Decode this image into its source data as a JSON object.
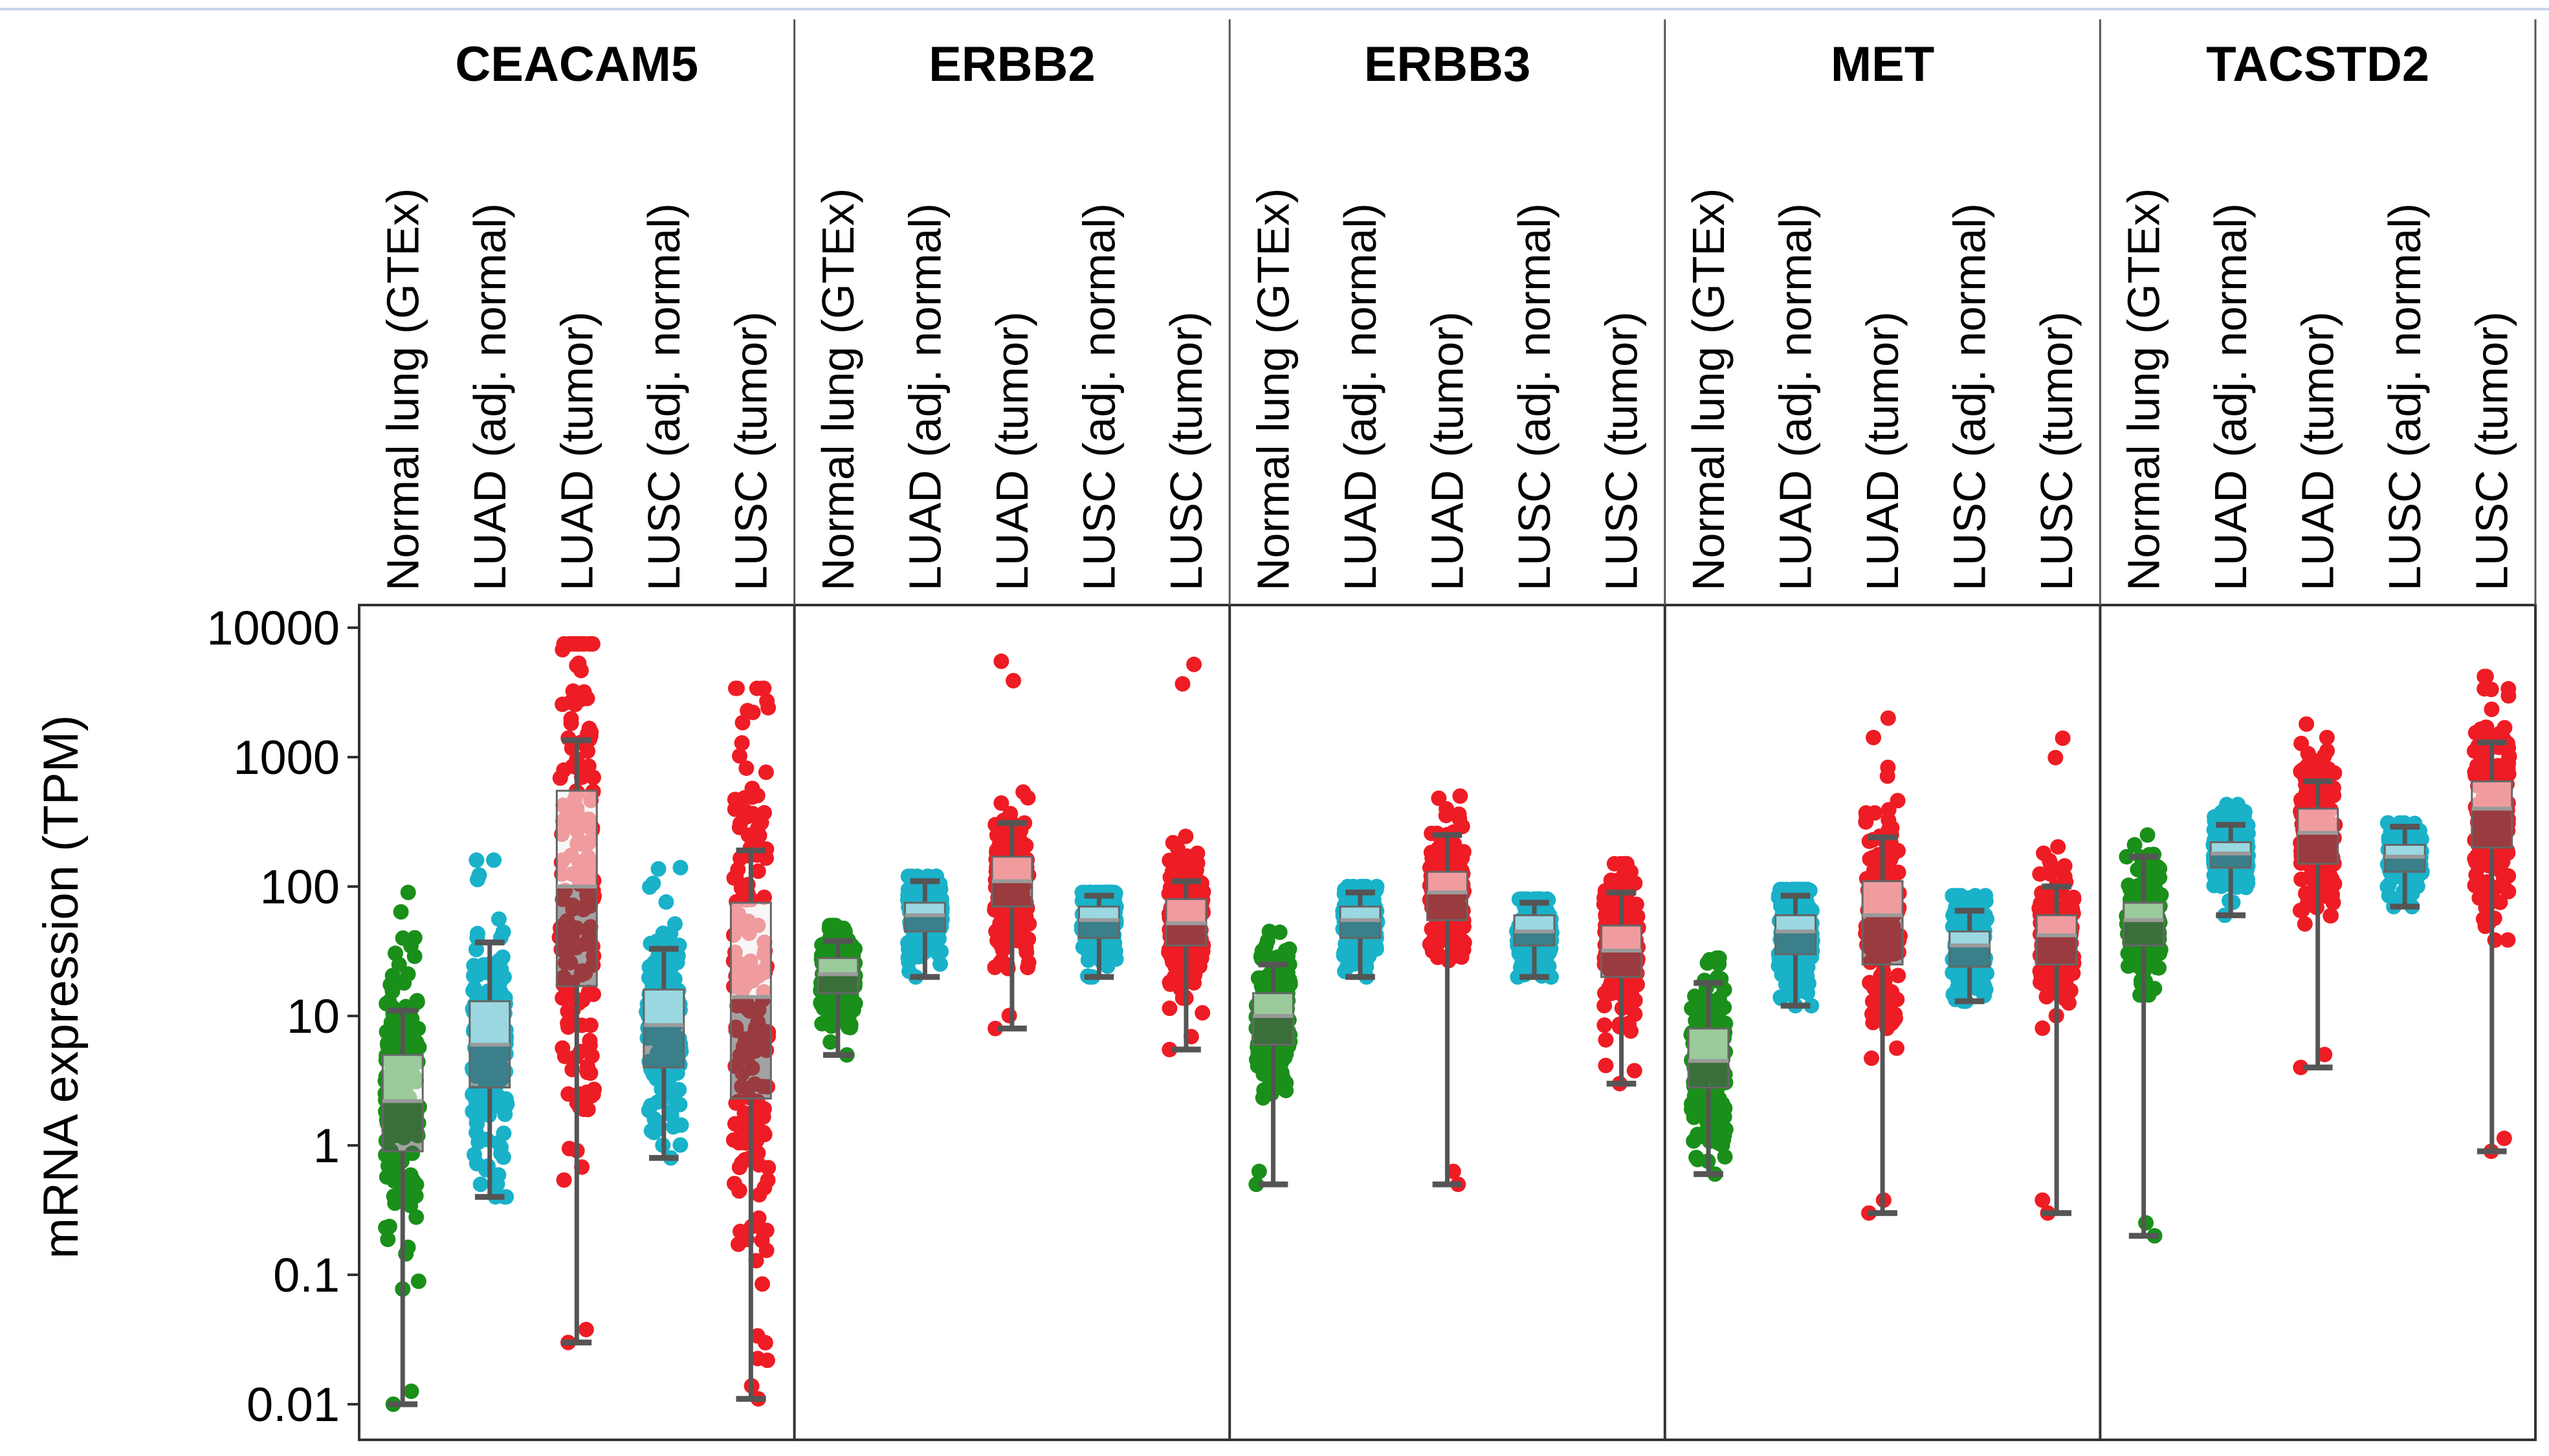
{
  "chart_data": {
    "type": "boxplot",
    "ylabel": "mRNA expression (TPM)",
    "yscale": "log",
    "ylim": [
      0.01,
      10000
    ],
    "yticks": [
      {
        "value": 10000,
        "label": "10000"
      },
      {
        "value": 1000,
        "label": "1000"
      },
      {
        "value": 100,
        "label": "100"
      },
      {
        "value": 10,
        "label": "10"
      },
      {
        "value": 1,
        "label": "1"
      },
      {
        "value": 0.1,
        "label": "0.1"
      },
      {
        "value": 0.01,
        "label": "0.01"
      }
    ],
    "categories": [
      "Normal lung (GTEx)",
      "LUAD (adj. normal)",
      "LUAD (tumor)",
      "LUSC (adj. normal)",
      "LUSC (tumor)"
    ],
    "category_colors": [
      "#1a8f1a",
      "#19b2c9",
      "#ee1c24",
      "#19b2c9",
      "#ee1c24"
    ],
    "panels": [
      {
        "gene": "CEACAM5",
        "boxes": [
          {
            "min": 0.01,
            "q1": 0.9,
            "median": 2.2,
            "q3": 5,
            "max": 11,
            "pmin": 0.01,
            "pmax": 90
          },
          {
            "min": 0.4,
            "q1": 2.8,
            "median": 6,
            "q3": 13,
            "max": 37,
            "pmin": 0.4,
            "pmax": 160
          },
          {
            "min": 0.03,
            "q1": 17,
            "median": 100,
            "q3": 550,
            "max": 1350,
            "pmin": 0.03,
            "pmax": 7500
          },
          {
            "min": 0.8,
            "q1": 4,
            "median": 8.5,
            "q3": 16,
            "max": 33,
            "pmin": 0.8,
            "pmax": 140
          },
          {
            "min": 0.011,
            "q1": 2.3,
            "median": 14,
            "q3": 75,
            "max": 190,
            "pmin": 0.011,
            "pmax": 3400
          }
        ]
      },
      {
        "gene": "ERBB2",
        "boxes": [
          {
            "min": 5,
            "q1": 15,
            "median": 21,
            "q3": 28,
            "max": 38,
            "pmin": 5,
            "pmax": 50
          },
          {
            "min": 20,
            "q1": 45,
            "median": 60,
            "q3": 75,
            "max": 110,
            "pmin": 20,
            "pmax": 120
          },
          {
            "min": 8,
            "q1": 70,
            "median": 110,
            "q3": 170,
            "max": 310,
            "pmin": 8,
            "pmax": 5500
          },
          {
            "min": 20,
            "q1": 40,
            "median": 55,
            "q3": 70,
            "max": 85,
            "pmin": 20,
            "pmax": 90
          },
          {
            "min": 5.5,
            "q1": 35,
            "median": 52,
            "q3": 80,
            "max": 110,
            "pmin": 5.5,
            "pmax": 5200
          }
        ]
      },
      {
        "gene": "ERBB3",
        "boxes": [
          {
            "min": 0.5,
            "q1": 6,
            "median": 10,
            "q3": 15,
            "max": 25,
            "pmin": 0.5,
            "pmax": 45
          },
          {
            "min": 20,
            "q1": 40,
            "median": 55,
            "q3": 70,
            "max": 90,
            "pmin": 20,
            "pmax": 100
          },
          {
            "min": 0.5,
            "q1": 55,
            "median": 90,
            "q3": 130,
            "max": 250,
            "pmin": 0.5,
            "pmax": 500
          },
          {
            "min": 20,
            "q1": 35,
            "median": 45,
            "q3": 60,
            "max": 75,
            "pmin": 20,
            "pmax": 80
          },
          {
            "min": 3,
            "q1": 20,
            "median": 32,
            "q3": 50,
            "max": 90,
            "pmin": 3,
            "pmax": 150
          }
        ]
      },
      {
        "gene": "MET",
        "boxes": [
          {
            "min": 0.6,
            "q1": 2.8,
            "median": 4.5,
            "q3": 8,
            "max": 18,
            "pmin": 0.6,
            "pmax": 28
          },
          {
            "min": 12,
            "q1": 30,
            "median": 45,
            "q3": 60,
            "max": 85,
            "pmin": 12,
            "pmax": 95
          },
          {
            "min": 0.3,
            "q1": 25,
            "median": 60,
            "q3": 110,
            "max": 240,
            "pmin": 0.3,
            "pmax": 2000
          },
          {
            "min": 13,
            "q1": 24,
            "median": 35,
            "q3": 45,
            "max": 65,
            "pmin": 13,
            "pmax": 85
          },
          {
            "min": 0.3,
            "q1": 25,
            "median": 42,
            "q3": 60,
            "max": 100,
            "pmin": 0.3,
            "pmax": 1400
          }
        ]
      },
      {
        "gene": "TACSTD2",
        "boxes": [
          {
            "min": 0.2,
            "q1": 35,
            "median": 55,
            "q3": 75,
            "max": 170,
            "pmin": 0.2,
            "pmax": 250
          },
          {
            "min": 60,
            "q1": 140,
            "median": 180,
            "q3": 220,
            "max": 300,
            "pmin": 60,
            "pmax": 430
          },
          {
            "min": 4,
            "q1": 150,
            "median": 260,
            "q3": 400,
            "max": 650,
            "pmin": 4,
            "pmax": 1800
          },
          {
            "min": 70,
            "q1": 130,
            "median": 170,
            "q3": 210,
            "max": 290,
            "pmin": 70,
            "pmax": 310
          },
          {
            "min": 0.9,
            "q1": 200,
            "median": 400,
            "q3": 650,
            "max": 1300,
            "pmin": 0.9,
            "pmax": 4200
          }
        ]
      }
    ]
  }
}
